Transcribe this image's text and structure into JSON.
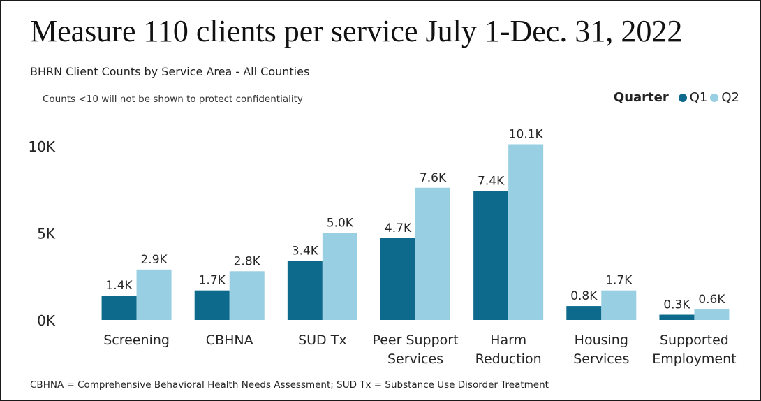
{
  "title": "Measure 110 clients per service July 1-Dec. 31, 2022",
  "subtitle": "BHRN Client Counts by Service Area - All Counties",
  "note": "Counts <10 will not be shown to protect confidentiality",
  "footnote": "CBHNA = Comprehensive Behavioral Health Needs Assessment; SUD Tx = Substance Use Disorder Treatment",
  "legend": {
    "title": "Quarter",
    "items": [
      {
        "label": "Q1",
        "color": "#0d6a8c"
      },
      {
        "label": "Q2",
        "color": "#99cfe3"
      }
    ]
  },
  "chart_data": {
    "type": "bar",
    "categories": [
      [
        "Screening"
      ],
      [
        "CBHNA"
      ],
      [
        "SUD Tx"
      ],
      [
        "Peer Support",
        "Services"
      ],
      [
        "Harm",
        "Reduction"
      ],
      [
        "Housing",
        "Services"
      ],
      [
        "Supported",
        "Employment"
      ]
    ],
    "series": [
      {
        "name": "Q1",
        "color": "#0d6a8c",
        "values": [
          1400,
          1700,
          3400,
          4700,
          7400,
          800,
          300
        ],
        "labels": [
          "1.4K",
          "1.7K",
          "3.4K",
          "4.7K",
          "7.4K",
          "0.8K",
          "0.3K"
        ]
      },
      {
        "name": "Q2",
        "color": "#99cfe3",
        "values": [
          2900,
          2800,
          5000,
          7600,
          10100,
          1700,
          600
        ],
        "labels": [
          "2.9K",
          "2.8K",
          "5.0K",
          "7.6K",
          "10.1K",
          "1.7K",
          "0.6K"
        ]
      }
    ],
    "yticks": [
      {
        "value": 0,
        "label": "0K"
      },
      {
        "value": 5000,
        "label": "5K"
      },
      {
        "value": 10000,
        "label": "10K"
      }
    ],
    "ylim": [
      0,
      10000
    ],
    "grid": false,
    "legend_position": "top-right"
  }
}
